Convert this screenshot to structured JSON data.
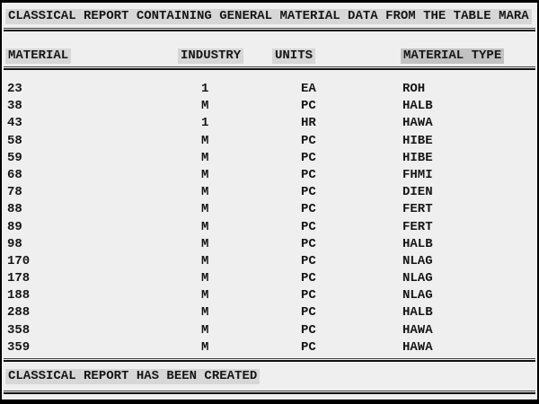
{
  "report": {
    "title": "CLASSICAL REPORT CONTAINING GENERAL MATERIAL DATA FROM THE TABLE MARA",
    "footer_message": "CLASSICAL REPORT HAS BEEN CREATED"
  },
  "table": {
    "columns": [
      "MATERIAL",
      "INDUSTRY",
      "UNITS",
      "MATERIAL TYPE"
    ],
    "rows": [
      [
        "23",
        "1",
        "EA",
        "ROH"
      ],
      [
        "38",
        "M",
        "PC",
        "HALB"
      ],
      [
        "43",
        "1",
        "HR",
        "HAWA"
      ],
      [
        "58",
        "M",
        "PC",
        "HIBE"
      ],
      [
        "59",
        "M",
        "PC",
        "HIBE"
      ],
      [
        "68",
        "M",
        "PC",
        "FHMI"
      ],
      [
        "78",
        "M",
        "PC",
        "DIEN"
      ],
      [
        "88",
        "M",
        "PC",
        "FERT"
      ],
      [
        "89",
        "M",
        "PC",
        "FERT"
      ],
      [
        "98",
        "M",
        "PC",
        "HALB"
      ],
      [
        "170",
        "M",
        "PC",
        "NLAG"
      ],
      [
        "178",
        "M",
        "PC",
        "NLAG"
      ],
      [
        "188",
        "M",
        "PC",
        "NLAG"
      ],
      [
        "288",
        "M",
        "PC",
        "HALB"
      ],
      [
        "358",
        "M",
        "PC",
        "HAWA"
      ],
      [
        "359",
        "M",
        "PC",
        "HAWA"
      ]
    ]
  },
  "colors": {
    "page_bg": "#efefef",
    "highlight_bg": "#d7d7d7",
    "emphasis_bg": "#c2c2c2",
    "text": "#161616",
    "border": "#000000"
  }
}
